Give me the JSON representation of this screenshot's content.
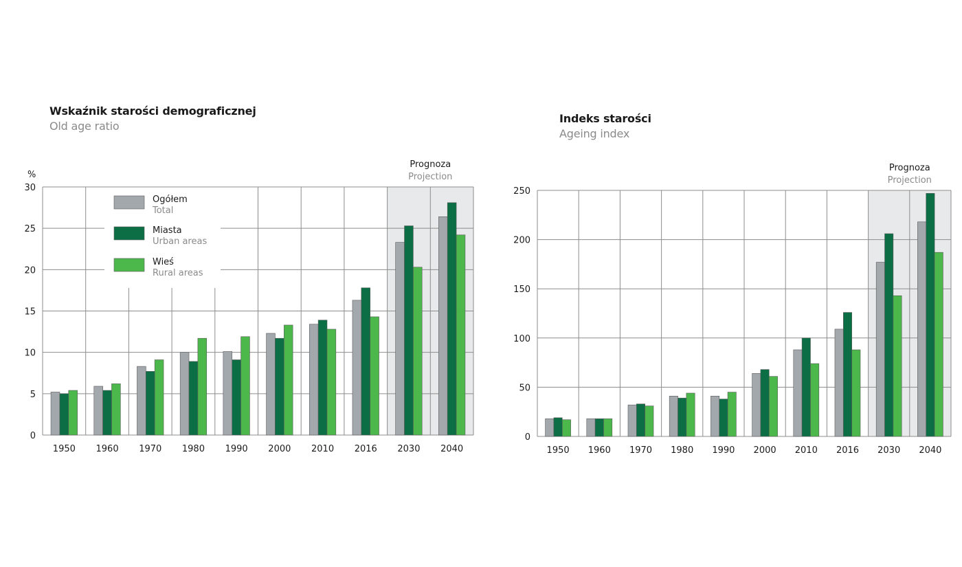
{
  "colors": {
    "total": "#a3a8ad",
    "urban": "#0b6e44",
    "rural": "#4cb84b",
    "projection_bg": "#e8e9ea",
    "grid": "#8c8c8c"
  },
  "legend": [
    {
      "pl": "Ogółem",
      "en": "Total"
    },
    {
      "pl": "Miasta",
      "en": "Urban areas"
    },
    {
      "pl": "Wieś",
      "en": "Rural areas"
    }
  ],
  "chart_data": [
    {
      "type": "bar",
      "title": "Wskaźnik starości demograficznej",
      "subtitle": "Old age ratio",
      "ylabel": "%",
      "ylim": [
        0,
        30
      ],
      "yticks": [
        0,
        5,
        10,
        15,
        20,
        25,
        30
      ],
      "categories": [
        "1950",
        "1960",
        "1970",
        "1980",
        "1990",
        "2000",
        "2010",
        "2016",
        "2030",
        "2040"
      ],
      "projection_label": [
        "Prognoza",
        "Projection"
      ],
      "projection_categories": [
        "2030",
        "2040"
      ],
      "legend_position": "top-left",
      "series": [
        {
          "name": "Ogółem / Total",
          "values": [
            5.2,
            5.9,
            8.3,
            10.0,
            10.1,
            12.3,
            13.4,
            16.3,
            23.3,
            26.4
          ]
        },
        {
          "name": "Miasta / Urban areas",
          "values": [
            5.0,
            5.4,
            7.7,
            8.9,
            9.1,
            11.7,
            13.9,
            17.8,
            25.3,
            28.1
          ]
        },
        {
          "name": "Wieś / Rural areas",
          "values": [
            5.4,
            6.2,
            9.1,
            11.7,
            11.9,
            13.3,
            12.8,
            14.3,
            20.3,
            24.2
          ]
        }
      ]
    },
    {
      "type": "bar",
      "title": "Indeks starości",
      "subtitle": "Ageing index",
      "ylabel": "",
      "ylim": [
        0,
        250
      ],
      "yticks": [
        0,
        50,
        100,
        150,
        200,
        250
      ],
      "categories": [
        "1950",
        "1960",
        "1970",
        "1980",
        "1990",
        "2000",
        "2010",
        "2016",
        "2030",
        "2040"
      ],
      "projection_label": [
        "Prognoza",
        "Projection"
      ],
      "projection_categories": [
        "2030",
        "2040"
      ],
      "series": [
        {
          "name": "Ogółem / Total",
          "values": [
            18,
            18,
            32,
            41,
            41,
            64,
            88,
            109,
            177,
            218
          ]
        },
        {
          "name": "Miasta / Urban areas",
          "values": [
            19,
            18,
            33,
            39,
            38,
            68,
            100,
            126,
            206,
            247
          ]
        },
        {
          "name": "Wieś / Rural areas",
          "values": [
            17,
            18,
            31,
            44,
            45,
            61,
            74,
            88,
            143,
            187
          ]
        }
      ]
    }
  ]
}
